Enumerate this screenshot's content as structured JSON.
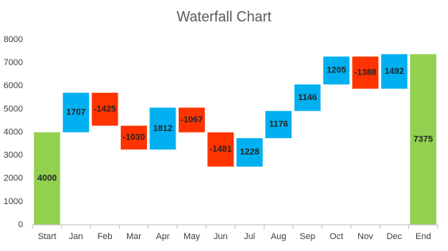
{
  "chart_data": {
    "type": "waterfall",
    "title": "Waterfall Chart",
    "categories": [
      "Start",
      "Jan",
      "Feb",
      "Mar",
      "Apr",
      "May",
      "Jun",
      "Jul",
      "Aug",
      "Sep",
      "Oct",
      "Nov",
      "Dec",
      "End"
    ],
    "values": [
      4000,
      1707,
      -1425,
      -1030,
      1812,
      -1067,
      -1481,
      1228,
      1176,
      1146,
      1205,
      -1388,
      1492,
      7375
    ],
    "is_total": [
      true,
      false,
      false,
      false,
      false,
      false,
      false,
      false,
      false,
      false,
      false,
      false,
      false,
      true
    ],
    "colors": {
      "total": "#92d050",
      "increase": "#00b0f0",
      "decrease": "#ff3300"
    },
    "ylim": [
      0,
      8000
    ],
    "yticks": [
      0,
      1000,
      2000,
      3000,
      4000,
      5000,
      6000,
      7000,
      8000
    ],
    "grid": false
  }
}
